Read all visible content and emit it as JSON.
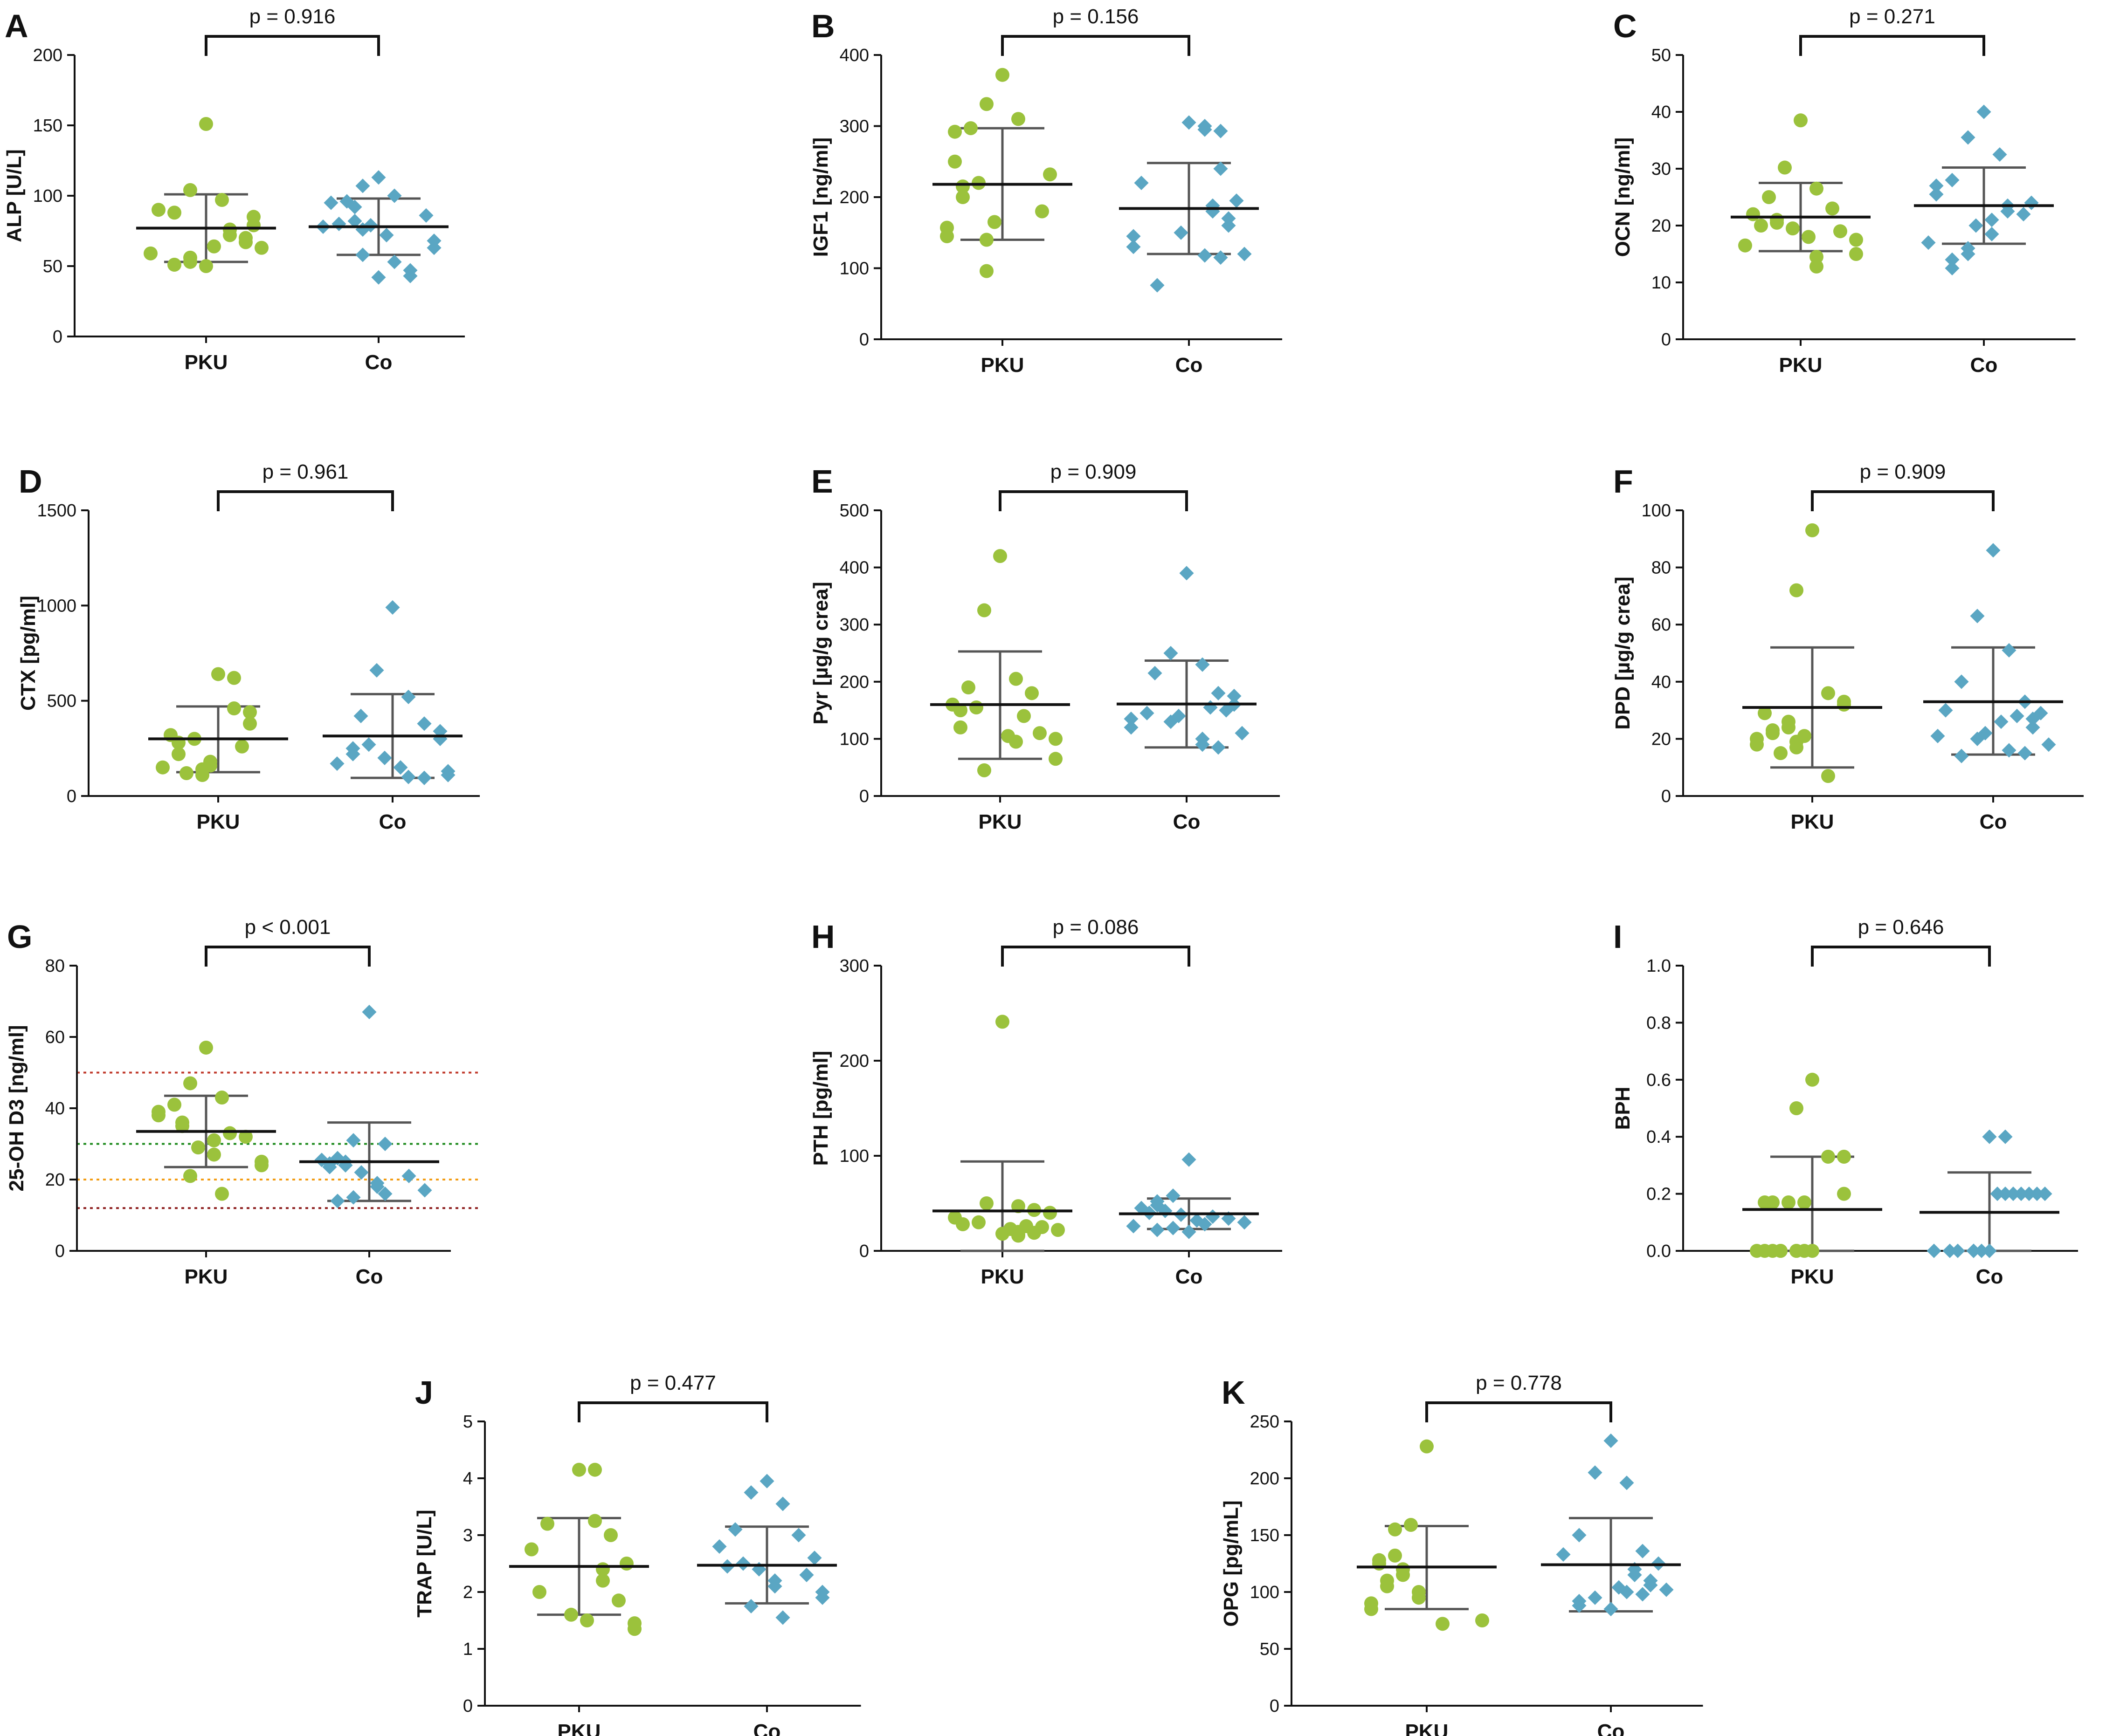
{
  "colors": {
    "pku": "#9bc23c",
    "co": "#5aa6c3",
    "axis": "#111111",
    "error": "#555555",
    "ref_red": "#c0392b",
    "ref_green": "#1e8a1e",
    "ref_orange": "#f39c12",
    "ref_darkred": "#8b1a1a"
  },
  "chart_data": [
    {
      "type": "scatter",
      "letter": "A",
      "ylabel": "ALP [U/L]",
      "ylim": [
        0,
        200
      ],
      "yticks": [
        0,
        50,
        100,
        150,
        200
      ],
      "p": "p = 0.916",
      "categories": [
        "PKU",
        "Co"
      ],
      "series": [
        {
          "name": "PKU",
          "marker": "circle",
          "mean": 77,
          "sd": [
            53,
            101
          ],
          "values": [
            151,
            104,
            97,
            88,
            90,
            85,
            79,
            76,
            72,
            70,
            67,
            64,
            63,
            59,
            56,
            53,
            51,
            50
          ]
        },
        {
          "name": "Co",
          "marker": "diamond",
          "mean": 78,
          "sd": [
            58,
            98
          ],
          "values": [
            113,
            107,
            100,
            96,
            95,
            92,
            86,
            82,
            80,
            79,
            78,
            76,
            72,
            68,
            63,
            58,
            53,
            47,
            43,
            42
          ]
        }
      ]
    },
    {
      "type": "scatter",
      "letter": "B",
      "ylabel": "IGF1 [ng/ml]",
      "ylim": [
        0,
        400
      ],
      "yticks": [
        0,
        100,
        200,
        300,
        400
      ],
      "p": "p = 0.156",
      "categories": [
        "PKU",
        "Co"
      ],
      "series": [
        {
          "name": "PKU",
          "marker": "circle",
          "mean": 218,
          "sd": [
            140,
            297
          ],
          "values": [
            372,
            331,
            310,
            297,
            292,
            250,
            232,
            220,
            215,
            200,
            180,
            165,
            157,
            145,
            140,
            96
          ]
        },
        {
          "name": "Co",
          "marker": "diamond",
          "mean": 184,
          "sd": [
            120,
            248
          ],
          "values": [
            305,
            300,
            295,
            293,
            240,
            220,
            195,
            188,
            180,
            170,
            160,
            150,
            145,
            130,
            120,
            118,
            115,
            76
          ]
        }
      ]
    },
    {
      "type": "scatter",
      "letter": "C",
      "ylabel": "OCN [ng/ml]",
      "ylim": [
        0,
        50
      ],
      "yticks": [
        0,
        10,
        20,
        30,
        40,
        50
      ],
      "p": "p = 0.271",
      "categories": [
        "PKU",
        "Co"
      ],
      "series": [
        {
          "name": "PKU",
          "marker": "circle",
          "mean": 21.5,
          "sd": [
            15.5,
            27.5
          ],
          "values": [
            38.5,
            30.2,
            26.5,
            25.0,
            23.0,
            22.0,
            21.0,
            20.5,
            20.0,
            19.5,
            19.0,
            18.0,
            17.5,
            16.5,
            15.0,
            14.5,
            12.8
          ]
        },
        {
          "name": "Co",
          "marker": "diamond",
          "mean": 23.5,
          "sd": [
            16.8,
            30.2
          ],
          "values": [
            40.0,
            35.5,
            32.5,
            28.0,
            27.0,
            25.5,
            24.0,
            23.5,
            22.5,
            22.0,
            21.0,
            20.0,
            18.5,
            17.0,
            16.0,
            15.0,
            14.0,
            12.5
          ]
        }
      ]
    },
    {
      "type": "scatter",
      "letter": "D",
      "ylabel": "CTX [pg/ml]",
      "ylim": [
        0,
        1500
      ],
      "yticks": [
        0,
        500,
        1000,
        1500
      ],
      "p": "p = 0.961",
      "categories": [
        "PKU",
        "Co"
      ],
      "series": [
        {
          "name": "PKU",
          "marker": "circle",
          "mean": 300,
          "sd": [
            125,
            470
          ],
          "values": [
            640,
            620,
            460,
            440,
            380,
            320,
            300,
            280,
            260,
            220,
            180,
            160,
            150,
            140,
            120,
            110
          ]
        },
        {
          "name": "Co",
          "marker": "diamond",
          "mean": 315,
          "sd": [
            95,
            535
          ],
          "values": [
            990,
            660,
            520,
            420,
            380,
            340,
            300,
            270,
            250,
            220,
            200,
            170,
            150,
            130,
            110,
            100,
            95
          ]
        }
      ]
    },
    {
      "type": "scatter",
      "letter": "E",
      "ylabel": "Pyr [µg/g crea]",
      "ylim": [
        0,
        500
      ],
      "yticks": [
        0,
        100,
        200,
        300,
        400,
        500
      ],
      "p": "p = 0.909",
      "categories": [
        "PKU",
        "Co"
      ],
      "series": [
        {
          "name": "PKU",
          "marker": "circle",
          "mean": 160,
          "sd": [
            65,
            253
          ],
          "values": [
            420,
            325,
            205,
            190,
            180,
            160,
            155,
            150,
            140,
            120,
            110,
            105,
            100,
            95,
            65,
            45
          ]
        },
        {
          "name": "Co",
          "marker": "diamond",
          "mean": 161,
          "sd": [
            85,
            237
          ],
          "values": [
            390,
            250,
            230,
            215,
            180,
            175,
            160,
            155,
            150,
            145,
            140,
            135,
            130,
            120,
            110,
            100,
            90,
            85
          ]
        }
      ]
    },
    {
      "type": "scatter",
      "letter": "F",
      "ylabel": "DPD  [µg/g crea]",
      "ylim": [
        0,
        100
      ],
      "yticks": [
        0,
        20,
        40,
        60,
        80,
        100
      ],
      "p": "p = 0.909",
      "categories": [
        "PKU",
        "Co"
      ],
      "series": [
        {
          "name": "PKU",
          "marker": "circle",
          "mean": 31,
          "sd": [
            10,
            52
          ],
          "values": [
            93,
            72,
            36,
            33,
            32,
            29,
            26,
            24,
            23,
            22,
            21,
            20,
            19,
            18,
            17,
            15,
            7
          ]
        },
        {
          "name": "Co",
          "marker": "diamond",
          "mean": 33,
          "sd": [
            14.5,
            52
          ],
          "values": [
            86,
            63,
            51,
            40,
            33,
            30,
            29,
            28,
            27,
            26,
            24,
            22,
            21,
            20,
            18,
            16,
            15,
            14
          ]
        }
      ]
    },
    {
      "type": "scatter",
      "letter": "G",
      "ylabel": "25-OH D3 [ng/ml]",
      "ylim": [
        0,
        80
      ],
      "yticks": [
        0,
        20,
        40,
        60,
        80
      ],
      "p": "p < 0.001",
      "categories": [
        "PKU",
        "Co"
      ],
      "ref_lines": [
        {
          "value": 50,
          "color": "ref_red"
        },
        {
          "value": 30,
          "color": "ref_green"
        },
        {
          "value": 20,
          "color": "ref_orange"
        },
        {
          "value": 12,
          "color": "ref_darkred"
        }
      ],
      "series": [
        {
          "name": "PKU",
          "marker": "circle",
          "mean": 33.5,
          "sd": [
            23.5,
            43.5
          ],
          "values": [
            57,
            47,
            43,
            41,
            39,
            38,
            36,
            35,
            33,
            32,
            31,
            29,
            27,
            25,
            24,
            21,
            16
          ]
        },
        {
          "name": "Co",
          "marker": "diamond",
          "mean": 25,
          "sd": [
            14,
            36
          ],
          "values": [
            67,
            31,
            30,
            26,
            25.5,
            25,
            24.5,
            24,
            23.5,
            22,
            21,
            19,
            18,
            17,
            16,
            15,
            14
          ]
        }
      ]
    },
    {
      "type": "scatter",
      "letter": "H",
      "ylabel": "PTH [pg/ml]",
      "ylim": [
        0,
        300
      ],
      "yticks": [
        0,
        100,
        200,
        300
      ],
      "p": "p = 0.086",
      "categories": [
        "PKU",
        "Co"
      ],
      "series": [
        {
          "name": "PKU",
          "marker": "circle",
          "mean": 42,
          "sd": [
            0,
            94
          ],
          "values": [
            241,
            50,
            47,
            43,
            40,
            35,
            30,
            28,
            26,
            25,
            23,
            22,
            20,
            19,
            18,
            17,
            16
          ]
        },
        {
          "name": "Co",
          "marker": "diamond",
          "mean": 39,
          "sd": [
            23,
            55
          ],
          "values": [
            96,
            58,
            52,
            48,
            45,
            42,
            40,
            38,
            36,
            34,
            32,
            30,
            28,
            26,
            24,
            22,
            20
          ]
        }
      ]
    },
    {
      "type": "scatter",
      "letter": "I",
      "ylabel": "BPH",
      "ylim": [
        0,
        1
      ],
      "yticks": [
        0.0,
        0.2,
        0.4,
        0.6,
        0.8,
        1.0
      ],
      "p": "p = 0.646",
      "categories": [
        "PKU",
        "Co"
      ],
      "series": [
        {
          "name": "PKU",
          "marker": "circle",
          "mean": 0.145,
          "sd": [
            0,
            0.33
          ],
          "values": [
            0.6,
            0.5,
            0.33,
            0.33,
            0.2,
            0.17,
            0.17,
            0.17,
            0.17,
            0.0,
            0.0,
            0.0,
            0.0,
            0.0,
            0.0,
            0.0,
            0.0,
            0.0
          ]
        },
        {
          "name": "Co",
          "marker": "diamond",
          "mean": 0.135,
          "sd": [
            0,
            0.275
          ],
          "values": [
            0.4,
            0.4,
            0.2,
            0.2,
            0.2,
            0.2,
            0.2,
            0.2,
            0.2,
            0.0,
            0.0,
            0.0,
            0.0,
            0.0,
            0.0,
            0.0
          ]
        }
      ]
    },
    {
      "type": "scatter",
      "letter": "J",
      "ylabel": "TRAP [U/L]",
      "ylim": [
        0,
        5
      ],
      "yticks": [
        0,
        1,
        2,
        3,
        4,
        5
      ],
      "p": "p = 0.477",
      "categories": [
        "PKU",
        "Co"
      ],
      "series": [
        {
          "name": "PKU",
          "marker": "circle",
          "mean": 2.45,
          "sd": [
            1.6,
            3.3
          ],
          "values": [
            4.15,
            4.15,
            3.25,
            3.2,
            3.0,
            2.75,
            2.5,
            2.4,
            2.2,
            2.0,
            1.85,
            1.6,
            1.5,
            1.45,
            1.35
          ]
        },
        {
          "name": "Co",
          "marker": "diamond",
          "mean": 2.47,
          "sd": [
            1.8,
            3.15
          ],
          "values": [
            3.95,
            3.75,
            3.55,
            3.1,
            3.0,
            2.8,
            2.6,
            2.5,
            2.45,
            2.4,
            2.3,
            2.2,
            2.1,
            2.0,
            1.9,
            1.75,
            1.55
          ]
        }
      ]
    },
    {
      "type": "scatter",
      "letter": "K",
      "ylabel": "OPG [pg/mL]",
      "ylim": [
        0,
        250
      ],
      "yticks": [
        0,
        50,
        100,
        150,
        200,
        250
      ],
      "p": "p = 0.778",
      "categories": [
        "PKU",
        "Co"
      ],
      "series": [
        {
          "name": "PKU",
          "marker": "circle",
          "mean": 122,
          "sd": [
            85,
            158
          ],
          "values": [
            228,
            159,
            155,
            132,
            128,
            125,
            120,
            115,
            110,
            105,
            100,
            95,
            90,
            85,
            75,
            72
          ]
        },
        {
          "name": "Co",
          "marker": "diamond",
          "mean": 124,
          "sd": [
            83,
            165
          ],
          "values": [
            233,
            205,
            196,
            150,
            136,
            133,
            125,
            120,
            115,
            110,
            106,
            104,
            102,
            100,
            98,
            95,
            92,
            88,
            85
          ]
        }
      ]
    }
  ]
}
